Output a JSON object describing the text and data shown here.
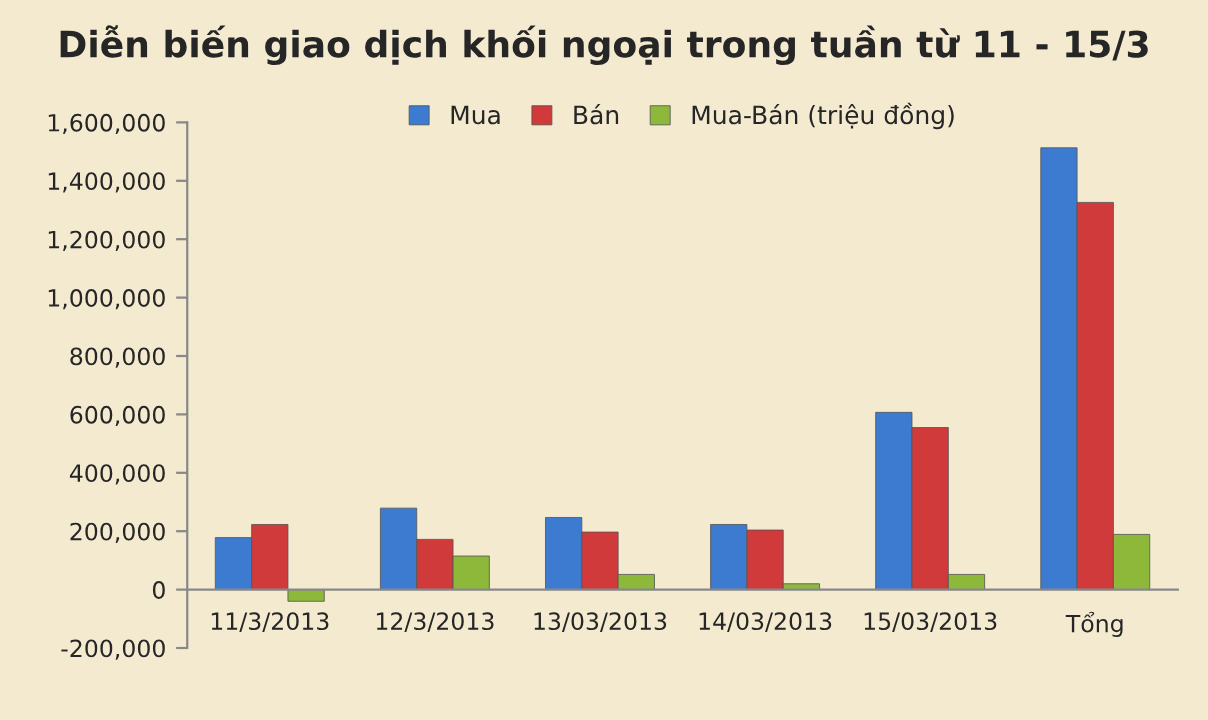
{
  "chart_data": {
    "type": "bar",
    "title": "Diễn biến giao dịch khối ngoại trong tuần từ 11 - 15/3",
    "categories": [
      "11/3/2013",
      "12/3/2013",
      "13/03/2013",
      "14/03/2013",
      "15/03/2013",
      "Tổng"
    ],
    "series": [
      {
        "name": "Mua",
        "color": "#3c7bd0",
        "values": [
          178000,
          279000,
          247000,
          223000,
          607000,
          1513000
        ]
      },
      {
        "name": "Bán",
        "color": "#d03a3a",
        "values": [
          223000,
          172000,
          197000,
          204000,
          555000,
          1326000
        ]
      },
      {
        "name": "Mua-Bán (triệu đồng)",
        "color": "#8db83a",
        "values": [
          -40000,
          115000,
          52000,
          20000,
          52000,
          189000
        ]
      }
    ],
    "ylim": [
      -200000,
      1600000
    ],
    "yticks": [
      {
        "value": -200000,
        "label": "-200,000"
      },
      {
        "value": 0,
        "label": "0"
      },
      {
        "value": 200000,
        "label": "200,000"
      },
      {
        "value": 400000,
        "label": "400,000"
      },
      {
        "value": 600000,
        "label": "600,000"
      },
      {
        "value": 800000,
        "label": "800,000"
      },
      {
        "value": 1000000,
        "label": "1,000,000"
      },
      {
        "value": 1200000,
        "label": "1,200,000"
      },
      {
        "value": 1400000,
        "label": "1,400,000"
      },
      {
        "value": 1600000,
        "label": "1,600,000"
      }
    ],
    "legend": "top"
  }
}
